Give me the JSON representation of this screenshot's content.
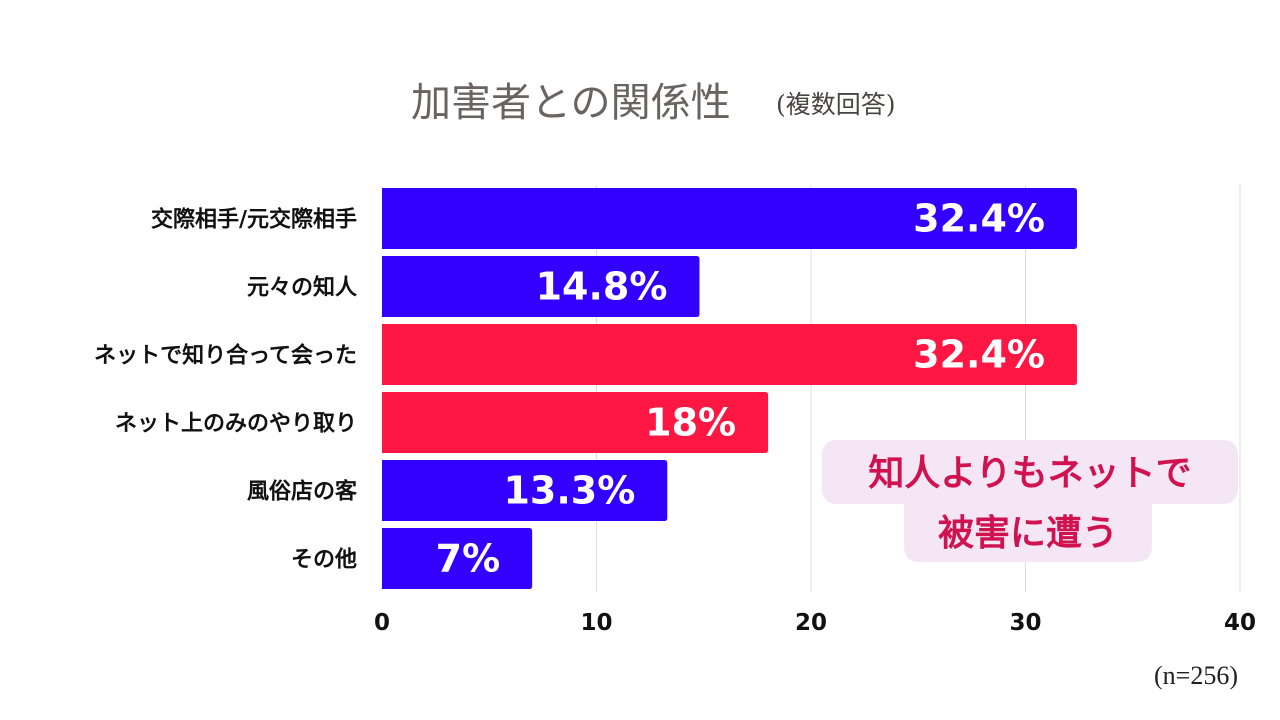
{
  "chart_data": {
    "type": "bar",
    "orientation": "horizontal",
    "title": "加害者との関係性",
    "subtitle": "(複数回答)",
    "categories": [
      "交際相手/元交際相手",
      "元々の知人",
      "ネットで知り合って会った",
      "ネット上のみのやり取り",
      "風俗店の客",
      "その他"
    ],
    "values": [
      32.4,
      14.8,
      32.4,
      18,
      13.3,
      7
    ],
    "value_labels": [
      "32.4%",
      "14.8%",
      "32.4%",
      "18%",
      "13.3%",
      "7%"
    ],
    "highlighted": [
      false,
      false,
      true,
      true,
      false,
      false
    ],
    "xlim": [
      0,
      40
    ],
    "xticks": [
      "0",
      "10",
      "20",
      "30",
      "40"
    ],
    "grid": true,
    "note": "(n=256)",
    "annotation": {
      "line1": "知人よりもネットで",
      "line2": "被害に遭う"
    },
    "colors": {
      "primary": "#3300ff",
      "highlight": "#ff1744",
      "callout_bg": "#f5e6f5",
      "callout_text": "#d0124f",
      "grid": "#dcdcdc"
    }
  }
}
